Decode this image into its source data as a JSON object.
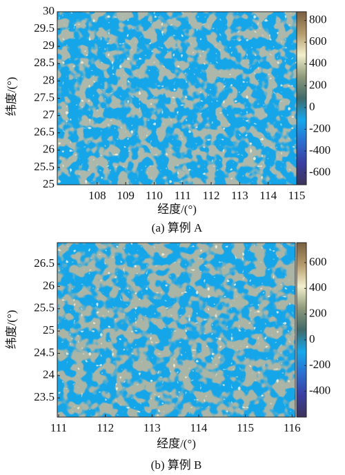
{
  "chart_data": [
    {
      "type": "heatmap",
      "xlabel": "经度/(°)",
      "ylabel": "纬度/(°)",
      "caption": "(a) 算例 A",
      "xlim": [
        106.6,
        115
      ],
      "xticks": [
        108,
        109,
        110,
        111,
        112,
        113,
        114,
        115
      ],
      "ylim": [
        25,
        30
      ],
      "yticks": [
        25,
        25.5,
        26,
        26.5,
        27,
        27.5,
        28,
        28.5,
        29,
        29.5,
        30
      ],
      "clim": [
        -710,
        880
      ],
      "cticks": [
        -600,
        -400,
        -200,
        0,
        200,
        400,
        600,
        800
      ],
      "colormap": [
        "#3d3458",
        "#3a3ea0",
        "#2a6fd0",
        "#14a8ec",
        "#3f6a6a",
        "#8e9a7a",
        "#f2f0cc",
        "#b59a6a",
        "#7a6040"
      ]
    },
    {
      "type": "heatmap",
      "xlabel": "经度/(°)",
      "ylabel": "纬度/(°)",
      "caption": "(b) 算例 B",
      "xlim": [
        110.97,
        116.07
      ],
      "xticks": [
        111,
        112,
        113,
        114,
        115,
        116
      ],
      "ylim": [
        23.07,
        26.98
      ],
      "yticks": [
        23.5,
        24,
        24.5,
        25,
        25.5,
        26,
        26.5
      ],
      "clim": [
        -600,
        755
      ],
      "cticks": [
        -400,
        -200,
        0,
        200,
        400,
        600
      ],
      "colormap": [
        "#3d3458",
        "#3a3ea0",
        "#2a6fd0",
        "#14a8ec",
        "#3f6a6a",
        "#8e9a7a",
        "#f2f0cc",
        "#b59a6a",
        "#7a6040"
      ]
    }
  ]
}
